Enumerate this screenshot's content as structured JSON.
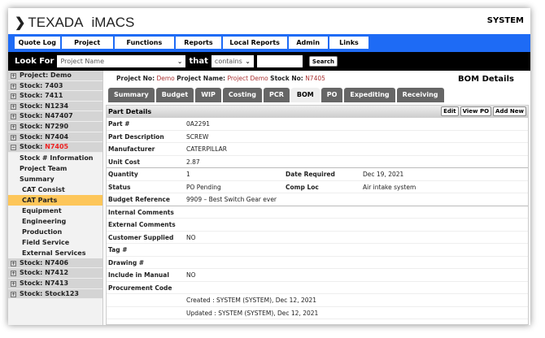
{
  "header": {
    "logo": "TEXADA",
    "app": "iMACS",
    "user": "SYSTEM"
  },
  "nav": [
    "Quote Log",
    "Project",
    "Functions",
    "Reports",
    "Local Reports",
    "Admin",
    "Links"
  ],
  "search": {
    "label": "Look For",
    "field": "Project Name",
    "that": "that",
    "op": "contains",
    "value": "",
    "button": "Search"
  },
  "sidebar": {
    "top": [
      "Project: Demo",
      "Stock: 7403",
      "Stock: 7411",
      "Stock: N1234",
      "Stock: N47407",
      "Stock: N7290",
      "Stock: N7404"
    ],
    "open_prefix": "Stock: ",
    "open_value": "N7405",
    "sub": [
      "Stock # Information",
      "Project Team",
      "Summary"
    ],
    "sub2": [
      "CAT Consist",
      "CAT Parts",
      "Equipment",
      "Engineering",
      "Production",
      "Field Service",
      "External Services"
    ],
    "bottom": [
      "Stock: N7406",
      "Stock: N7412",
      "Stock: N7413",
      "Stock: Stock123"
    ]
  },
  "project": {
    "no_label": "Project No:",
    "no": "Demo",
    "name_label": "Project Name:",
    "name": "Project Demo",
    "stock_label": "Stock No:",
    "stock": "N7405",
    "page_title": "BOM Details"
  },
  "tabs": [
    "Summary",
    "Budget",
    "WIP",
    "Costing",
    "PCR",
    "BOM",
    "PO",
    "Expediting",
    "Receiving"
  ],
  "panel": {
    "title": "Part Details",
    "buttons": [
      "Edit",
      "View PO",
      "Add New"
    ],
    "rows": [
      {
        "k": "Part #",
        "v": "0A2291"
      },
      {
        "k": "Part Description",
        "v": "SCREW"
      },
      {
        "k": "Manufacturer",
        "v": "CATERPILLAR"
      },
      {
        "k": "Unit Cost",
        "v": "2.87"
      },
      {
        "k": "Quantity",
        "v": "1",
        "k2": "Date Required",
        "v2": "Dec 19, 2021"
      },
      {
        "k": "Status",
        "v": "PO Pending",
        "k2": "Comp Loc",
        "v2": "Air intake system"
      },
      {
        "k": "Budget Reference",
        "v": "9909 – Best Switch Gear ever"
      },
      {
        "k": "Internal Comments",
        "v": ""
      },
      {
        "k": "External Comments",
        "v": ""
      },
      {
        "k": "Customer Supplied",
        "v": "NO"
      },
      {
        "k": "Tag #",
        "v": ""
      },
      {
        "k": "Drawing #",
        "v": ""
      },
      {
        "k": "Include in Manual",
        "v": "NO"
      },
      {
        "k": "Procurement Code",
        "v": ""
      },
      {
        "k": "",
        "v": "Created : SYSTEM (SYSTEM), Dec 12, 2021"
      },
      {
        "k": "",
        "v": "Updated : SYSTEM (SYSTEM), Dec 12, 2021"
      }
    ]
  }
}
